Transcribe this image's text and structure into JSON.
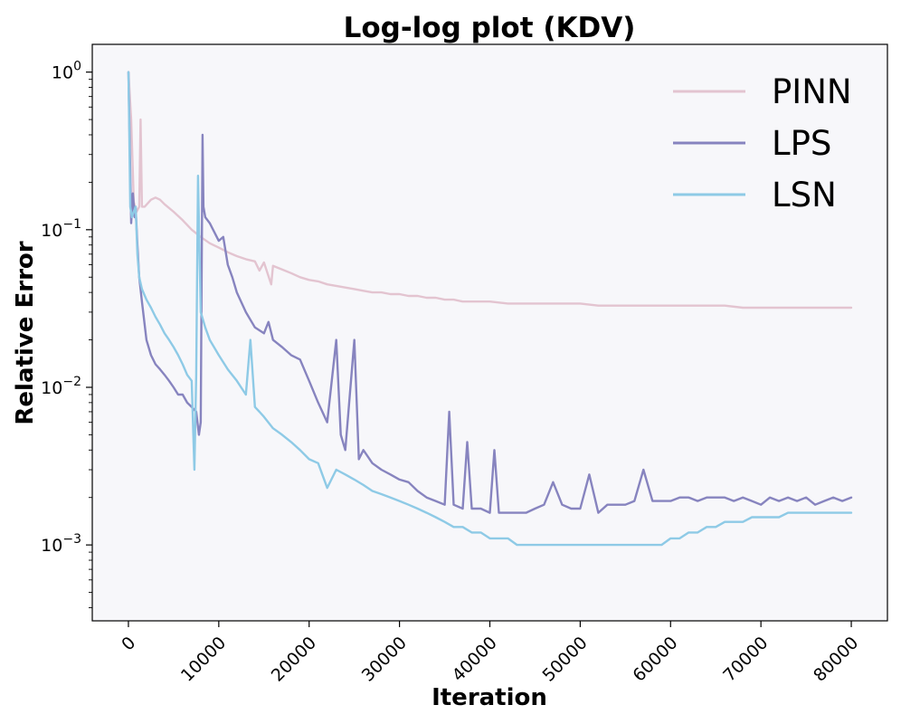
{
  "chart_data": {
    "type": "line",
    "title": "Log-log plot (KDV)",
    "xlabel": "Iteration",
    "ylabel": "Relative Error",
    "xlim": [
      -4000,
      84000
    ],
    "ylim": [
      0.00033,
      1.5
    ],
    "yscale": "log",
    "grid": false,
    "legend_position": "top-right",
    "background": "#f7f7fa",
    "x_ticks": [
      {
        "value": 0,
        "label": "0"
      },
      {
        "value": 10000,
        "label": "10000"
      },
      {
        "value": 20000,
        "label": "20000"
      },
      {
        "value": 30000,
        "label": "30000"
      },
      {
        "value": 40000,
        "label": "40000"
      },
      {
        "value": 50000,
        "label": "50000"
      },
      {
        "value": 60000,
        "label": "60000"
      },
      {
        "value": 70000,
        "label": "70000"
      },
      {
        "value": 80000,
        "label": "80000"
      }
    ],
    "y_ticks": [
      {
        "value": 1,
        "base": "10",
        "exp": "0"
      },
      {
        "value": 0.1,
        "base": "10",
        "exp": "−1"
      },
      {
        "value": 0.01,
        "base": "10",
        "exp": "−2"
      },
      {
        "value": 0.001,
        "base": "10",
        "exp": "−3"
      }
    ],
    "series": [
      {
        "name": "PINN",
        "color": "#e3c4d0",
        "x": [
          0,
          300,
          600,
          900,
          1200,
          1350,
          1500,
          1800,
          2500,
          3000,
          3500,
          4000,
          5000,
          6000,
          7000,
          8000,
          9000,
          10000,
          11000,
          12000,
          13000,
          14000,
          14500,
          15000,
          15800,
          16000,
          17000,
          18000,
          19000,
          20000,
          21000,
          22000,
          23000,
          24000,
          25000,
          26000,
          27000,
          28000,
          29000,
          30000,
          31000,
          32000,
          33000,
          34000,
          35000,
          36000,
          37000,
          38000,
          40000,
          42000,
          44000,
          46000,
          48000,
          50000,
          52000,
          54000,
          56000,
          58000,
          60000,
          62000,
          64000,
          66000,
          68000,
          70000,
          72000,
          74000,
          76000,
          78000,
          80000
        ],
        "y": [
          1.0,
          0.5,
          0.15,
          0.13,
          0.14,
          0.5,
          0.14,
          0.14,
          0.155,
          0.16,
          0.155,
          0.145,
          0.13,
          0.115,
          0.1,
          0.09,
          0.082,
          0.077,
          0.072,
          0.068,
          0.065,
          0.063,
          0.055,
          0.062,
          0.045,
          0.059,
          0.056,
          0.053,
          0.05,
          0.048,
          0.047,
          0.045,
          0.044,
          0.043,
          0.042,
          0.041,
          0.04,
          0.04,
          0.039,
          0.039,
          0.038,
          0.038,
          0.037,
          0.037,
          0.036,
          0.036,
          0.035,
          0.035,
          0.035,
          0.034,
          0.034,
          0.034,
          0.034,
          0.034,
          0.033,
          0.033,
          0.033,
          0.033,
          0.033,
          0.033,
          0.033,
          0.033,
          0.032,
          0.032,
          0.032,
          0.032,
          0.032,
          0.032,
          0.032
        ]
      },
      {
        "name": "LPS",
        "color": "#8784bf",
        "x": [
          0,
          300,
          500,
          700,
          800,
          1000,
          1200,
          1500,
          1800,
          2000,
          2500,
          3000,
          3500,
          4000,
          4500,
          5000,
          5500,
          6000,
          6500,
          7000,
          7500,
          7800,
          8000,
          8200,
          8300,
          8500,
          9000,
          10000,
          10500,
          11000,
          11500,
          12000,
          13000,
          14000,
          15000,
          15500,
          16000,
          17000,
          18000,
          19000,
          20000,
          21000,
          22000,
          23000,
          23500,
          24000,
          25000,
          25500,
          26000,
          27000,
          28000,
          29000,
          30000,
          31000,
          32000,
          33000,
          34000,
          35000,
          35500,
          36000,
          37000,
          37500,
          38000,
          39000,
          40000,
          40500,
          41000,
          42000,
          43000,
          44000,
          45000,
          46000,
          47000,
          48000,
          49000,
          50000,
          51000,
          52000,
          53000,
          54000,
          55000,
          56000,
          57000,
          58000,
          59000,
          60000,
          61000,
          62000,
          63000,
          64000,
          65000,
          66000,
          67000,
          68000,
          69000,
          70000,
          71000,
          72000,
          73000,
          74000,
          75000,
          76000,
          77000,
          78000,
          79000,
          80000
        ],
        "y": [
          1.0,
          0.11,
          0.17,
          0.12,
          0.14,
          0.08,
          0.05,
          0.035,
          0.025,
          0.02,
          0.016,
          0.014,
          0.013,
          0.012,
          0.011,
          0.01,
          0.009,
          0.009,
          0.008,
          0.0075,
          0.007,
          0.005,
          0.006,
          0.4,
          0.14,
          0.12,
          0.11,
          0.085,
          0.09,
          0.06,
          0.05,
          0.04,
          0.03,
          0.024,
          0.022,
          0.026,
          0.02,
          0.018,
          0.016,
          0.015,
          0.011,
          0.008,
          0.006,
          0.02,
          0.005,
          0.004,
          0.02,
          0.0035,
          0.004,
          0.0033,
          0.003,
          0.0028,
          0.0026,
          0.0025,
          0.0022,
          0.002,
          0.0019,
          0.0018,
          0.007,
          0.0018,
          0.0017,
          0.0045,
          0.0017,
          0.0017,
          0.0016,
          0.004,
          0.0016,
          0.0016,
          0.0016,
          0.0016,
          0.0017,
          0.0018,
          0.0025,
          0.0018,
          0.0017,
          0.0017,
          0.0028,
          0.0016,
          0.0018,
          0.0018,
          0.0018,
          0.0019,
          0.003,
          0.0019,
          0.0019,
          0.0019,
          0.002,
          0.002,
          0.0019,
          0.002,
          0.002,
          0.002,
          0.0019,
          0.002,
          0.0019,
          0.0018,
          0.002,
          0.0019,
          0.002,
          0.0019,
          0.002,
          0.0018,
          0.0019,
          0.002,
          0.0019,
          0.002
        ]
      },
      {
        "name": "LSN",
        "color": "#8ecae6",
        "x": [
          0,
          200,
          400,
          600,
          800,
          1000,
          1200,
          1500,
          2000,
          2500,
          3000,
          3500,
          4000,
          4500,
          5000,
          5500,
          6000,
          6500,
          7000,
          7300,
          7500,
          7700,
          8000,
          8500,
          9000,
          10000,
          11000,
          12000,
          13000,
          13500,
          14000,
          14500,
          15000,
          16000,
          17000,
          18000,
          19000,
          20000,
          21000,
          22000,
          23000,
          24000,
          25000,
          26000,
          27000,
          28000,
          29000,
          30000,
          31000,
          32000,
          33000,
          34000,
          35000,
          36000,
          37000,
          38000,
          39000,
          40000,
          41000,
          42000,
          43000,
          44000,
          45000,
          46000,
          47000,
          48000,
          49000,
          50000,
          51000,
          52000,
          53000,
          54000,
          55000,
          56000,
          57000,
          58000,
          59000,
          60000,
          61000,
          62000,
          63000,
          64000,
          65000,
          66000,
          67000,
          68000,
          69000,
          70000,
          71000,
          72000,
          73000,
          74000,
          75000,
          76000,
          77000,
          78000,
          79000,
          80000
        ],
        "y": [
          1.0,
          0.14,
          0.12,
          0.13,
          0.14,
          0.07,
          0.05,
          0.042,
          0.036,
          0.032,
          0.028,
          0.025,
          0.022,
          0.02,
          0.018,
          0.016,
          0.014,
          0.012,
          0.011,
          0.003,
          0.012,
          0.22,
          0.03,
          0.024,
          0.02,
          0.016,
          0.013,
          0.011,
          0.009,
          0.02,
          0.0075,
          0.007,
          0.0065,
          0.0055,
          0.005,
          0.0045,
          0.004,
          0.0035,
          0.0033,
          0.0023,
          0.003,
          0.0028,
          0.0026,
          0.0024,
          0.0022,
          0.0021,
          0.002,
          0.0019,
          0.0018,
          0.0017,
          0.0016,
          0.0015,
          0.0014,
          0.0013,
          0.0013,
          0.0012,
          0.0012,
          0.0011,
          0.0011,
          0.0011,
          0.001,
          0.001,
          0.001,
          0.001,
          0.001,
          0.001,
          0.001,
          0.001,
          0.001,
          0.001,
          0.001,
          0.001,
          0.001,
          0.001,
          0.001,
          0.001,
          0.001,
          0.0011,
          0.0011,
          0.0012,
          0.0012,
          0.0013,
          0.0013,
          0.0014,
          0.0014,
          0.0014,
          0.0015,
          0.0015,
          0.0015,
          0.0015,
          0.0016,
          0.0016,
          0.0016,
          0.0016,
          0.0016,
          0.0016,
          0.0016,
          0.0016
        ]
      }
    ]
  }
}
